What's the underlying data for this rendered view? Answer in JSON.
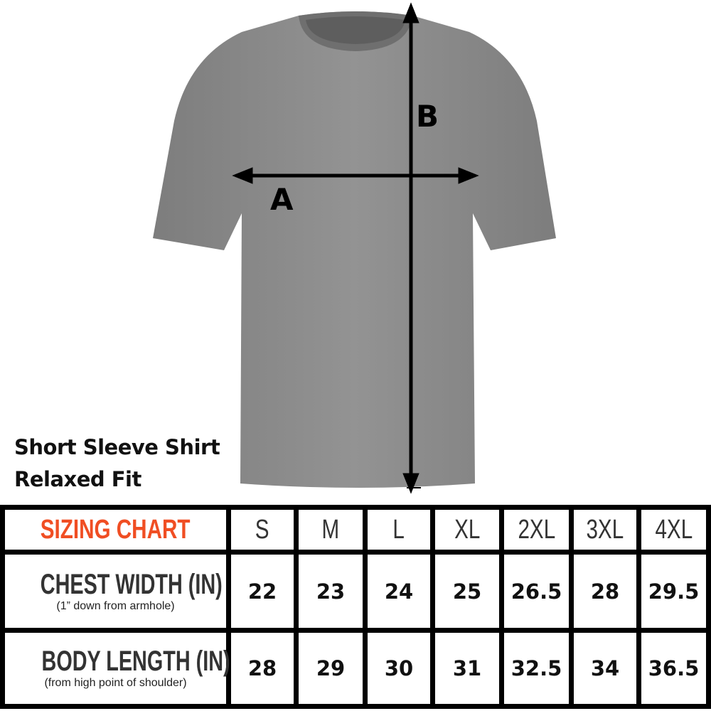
{
  "product": {
    "title_line1": "Short Sleeve Shirt",
    "title_line2": "Relaxed Fit",
    "measure_a": "A",
    "measure_b": "B",
    "shirt_color": "#8e8e8e"
  },
  "chart": {
    "title": "SIZING CHART",
    "title_color": "#f04e23",
    "sizes": [
      "S",
      "M",
      "L",
      "XL",
      "2XL",
      "3XL",
      "4XL"
    ],
    "rows": [
      {
        "label": "CHEST WIDTH (IN)",
        "sublabel": "(1” down from armhole)",
        "values": [
          "22",
          "23",
          "24",
          "25",
          "26.5",
          "28",
          "29.5"
        ]
      },
      {
        "label": "BODY LENGTH (IN)",
        "sublabel": "(from high point of shoulder)",
        "values": [
          "28",
          "29",
          "30",
          "31",
          "32.5",
          "34",
          "36.5"
        ]
      }
    ]
  }
}
